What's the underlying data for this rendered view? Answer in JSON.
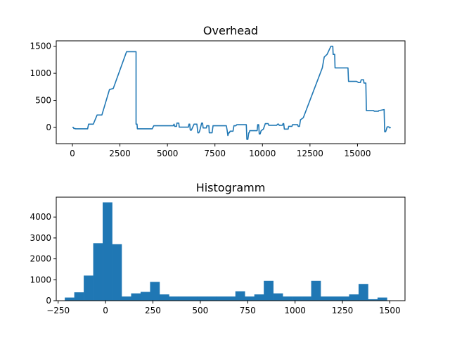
{
  "chart_data": [
    {
      "type": "line",
      "title": "Overhead",
      "xlabel": "",
      "ylabel": "",
      "xlim": [
        -850,
        17500
      ],
      "ylim": [
        -300,
        1600
      ],
      "xticks": [
        0,
        2500,
        5000,
        7500,
        10000,
        12500,
        15000
      ],
      "yticks": [
        0,
        500,
        1000,
        1500
      ],
      "xtick_labels": [
        "0",
        "2500",
        "5000",
        "7500",
        "10000",
        "12500",
        "15000"
      ],
      "ytick_labels": [
        "0",
        "500",
        "1000",
        "1500"
      ],
      "grid": false,
      "color": "#1f77b4",
      "points": [
        [
          0,
          0
        ],
        [
          50,
          0
        ],
        [
          80,
          -20
        ],
        [
          150,
          -20
        ],
        [
          150,
          -25
        ],
        [
          800,
          -25
        ],
        [
          850,
          60
        ],
        [
          1100,
          60
        ],
        [
          1300,
          230
        ],
        [
          1550,
          230
        ],
        [
          1950,
          700
        ],
        [
          2150,
          720
        ],
        [
          2850,
          1400
        ],
        [
          3350,
          1400
        ],
        [
          3350,
          60
        ],
        [
          3400,
          60
        ],
        [
          3420,
          -25
        ],
        [
          4200,
          -25
        ],
        [
          4280,
          30
        ],
        [
          5300,
          30
        ],
        [
          5350,
          60
        ],
        [
          5380,
          20
        ],
        [
          5480,
          20
        ],
        [
          5500,
          80
        ],
        [
          5600,
          80
        ],
        [
          5620,
          5
        ],
        [
          6100,
          5
        ],
        [
          6130,
          60
        ],
        [
          6170,
          60
        ],
        [
          6200,
          -50
        ],
        [
          6260,
          -50
        ],
        [
          6400,
          60
        ],
        [
          6550,
          60
        ],
        [
          6600,
          -100
        ],
        [
          6650,
          -100
        ],
        [
          6700,
          -60
        ],
        [
          6800,
          80
        ],
        [
          6850,
          80
        ],
        [
          6880,
          -10
        ],
        [
          7050,
          -10
        ],
        [
          7070,
          30
        ],
        [
          7180,
          30
        ],
        [
          7200,
          -100
        ],
        [
          7350,
          -100
        ],
        [
          7400,
          30
        ],
        [
          8100,
          30
        ],
        [
          8140,
          -50
        ],
        [
          8180,
          -150
        ],
        [
          8220,
          -100
        ],
        [
          8260,
          -100
        ],
        [
          8300,
          -70
        ],
        [
          8450,
          -70
        ],
        [
          8500,
          30
        ],
        [
          8600,
          30
        ],
        [
          8650,
          50
        ],
        [
          9150,
          50
        ],
        [
          9180,
          -220
        ],
        [
          9230,
          -220
        ],
        [
          9280,
          -100
        ],
        [
          9300,
          -100
        ],
        [
          9330,
          -60
        ],
        [
          9720,
          -60
        ],
        [
          9750,
          50
        ],
        [
          9800,
          50
        ],
        [
          9830,
          -120
        ],
        [
          9880,
          -120
        ],
        [
          9930,
          -60
        ],
        [
          10050,
          -30
        ],
        [
          10150,
          70
        ],
        [
          10300,
          70
        ],
        [
          10330,
          40
        ],
        [
          10750,
          40
        ],
        [
          10800,
          60
        ],
        [
          10850,
          60
        ],
        [
          10880,
          40
        ],
        [
          11050,
          40
        ],
        [
          11080,
          70
        ],
        [
          11120,
          70
        ],
        [
          11150,
          -30
        ],
        [
          11350,
          -30
        ],
        [
          11380,
          20
        ],
        [
          11550,
          20
        ],
        [
          11580,
          50
        ],
        [
          11850,
          50
        ],
        [
          11880,
          20
        ],
        [
          11950,
          20
        ],
        [
          12000,
          140
        ],
        [
          12150,
          180
        ],
        [
          13150,
          1100
        ],
        [
          13250,
          1300
        ],
        [
          13400,
          1350
        ],
        [
          13600,
          1500
        ],
        [
          13700,
          1500
        ],
        [
          13720,
          1350
        ],
        [
          13800,
          1350
        ],
        [
          13820,
          1100
        ],
        [
          14500,
          1100
        ],
        [
          14530,
          850
        ],
        [
          14950,
          850
        ],
        [
          15050,
          830
        ],
        [
          15150,
          830
        ],
        [
          15200,
          880
        ],
        [
          15320,
          880
        ],
        [
          15340,
          820
        ],
        [
          15440,
          820
        ],
        [
          15470,
          310
        ],
        [
          15850,
          310
        ],
        [
          15880,
          300
        ],
        [
          16100,
          300
        ],
        [
          16120,
          310
        ],
        [
          16400,
          330
        ],
        [
          16430,
          -80
        ],
        [
          16480,
          -80
        ],
        [
          16520,
          -40
        ],
        [
          16560,
          10
        ],
        [
          16650,
          10
        ],
        [
          16700,
          -10
        ],
        [
          16750,
          0
        ]
      ]
    },
    {
      "type": "bar",
      "title": "Histogramm",
      "xlabel": "",
      "ylabel": "",
      "xlim": [
        -260,
        1580
      ],
      "ylim": [
        0,
        4950
      ],
      "xticks": [
        -250,
        0,
        250,
        500,
        750,
        1000,
        1250,
        1500
      ],
      "yticks": [
        0,
        1000,
        2000,
        3000,
        4000
      ],
      "xtick_labels": [
        "−250",
        "0",
        "250",
        "500",
        "750",
        "1000",
        "1250",
        "1500"
      ],
      "ytick_labels": [
        "0",
        "1000",
        "2000",
        "3000",
        "4000"
      ],
      "grid": false,
      "color": "#1f77b4",
      "bin_width": 50,
      "bin_starts": [
        -215,
        -165,
        -115,
        -65,
        -15,
        35,
        85,
        135,
        185,
        235,
        285,
        335,
        385,
        435,
        485,
        535,
        585,
        635,
        685,
        735,
        785,
        835,
        885,
        935,
        985,
        1035,
        1085,
        1135,
        1185,
        1235,
        1285,
        1335,
        1385,
        1435,
        1485
      ],
      "values": [
        150,
        400,
        1200,
        2750,
        4700,
        2700,
        200,
        350,
        420,
        900,
        300,
        200,
        200,
        200,
        200,
        200,
        200,
        200,
        450,
        200,
        300,
        950,
        350,
        200,
        200,
        200,
        950,
        200,
        200,
        200,
        300,
        800,
        70,
        150,
        0
      ]
    }
  ]
}
